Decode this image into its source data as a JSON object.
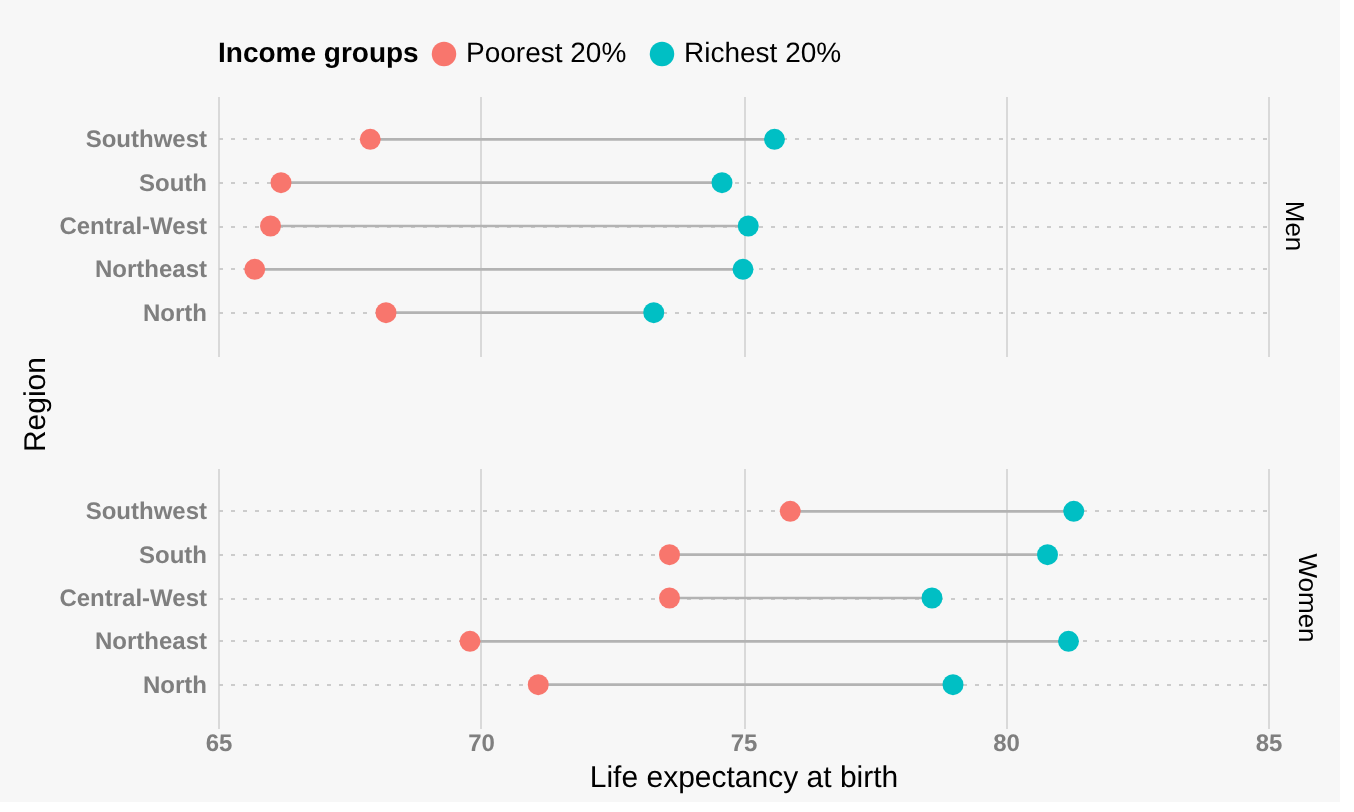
{
  "chart_data": [
    {
      "type": "scatter",
      "orientation": "horizontal",
      "title": "Men",
      "ylabel": "Region",
      "legend_title": "Income groups",
      "legend": "top",
      "marker": "circle",
      "grid": true,
      "tick_labels": "y",
      "categories": [
        "Southwest",
        "South",
        "Central-West",
        "Northeast",
        "North"
      ],
      "xlim": [
        65,
        85
      ],
      "xticks": [
        65,
        70,
        75,
        80,
        85
      ],
      "series": [
        {
          "name": "Poorest 20%",
          "color": "#f8766d",
          "values": [
            67.9,
            66.2,
            66.0,
            65.7,
            68.2
          ]
        },
        {
          "name": "Richest 20%",
          "color": "#00bfc4",
          "values": [
            75.6,
            74.6,
            75.1,
            75.0,
            73.3
          ]
        }
      ]
    },
    {
      "type": "scatter",
      "orientation": "horizontal",
      "title": "Women",
      "xlabel": "Life expectancy at birth",
      "marker": "circle",
      "grid": true,
      "categories": [
        "Southwest",
        "South",
        "Central-West",
        "Northeast",
        "North"
      ],
      "xlim": [
        65,
        85
      ],
      "xticks": [
        65,
        70,
        75,
        80,
        85
      ],
      "series": [
        {
          "color": "#f8766d",
          "values": [
            75.9,
            73.6,
            73.6,
            69.8,
            71.1
          ]
        },
        {
          "color": "#00bfc4",
          "values": [
            81.3,
            80.8,
            78.6,
            81.2,
            79.0
          ]
        }
      ]
    }
  ]
}
